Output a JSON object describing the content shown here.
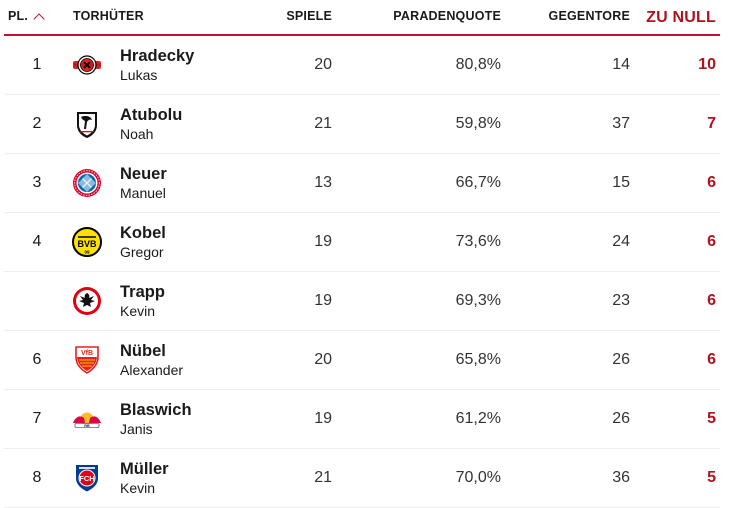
{
  "header": {
    "pl": "PL.",
    "torhueter": "TORHÜTER",
    "spiele": "SPIELE",
    "paradenquote": "PARADENQUOTE",
    "gegentore": "GEGENTORE",
    "zu_null": "ZU NULL",
    "sort_icon": "chevron-up-icon",
    "accent_color": "#c8102e"
  },
  "rows": [
    {
      "rank": "1",
      "last": "Hradecky",
      "first": "Lukas",
      "club_icon": "leverkusen-crest-icon",
      "spiele": "20",
      "paradenquote": "80,8%",
      "gegentore": "14",
      "zu_null": "10"
    },
    {
      "rank": "2",
      "last": "Atubolu",
      "first": "Noah",
      "club_icon": "freiburg-crest-icon",
      "spiele": "21",
      "paradenquote": "59,8%",
      "gegentore": "37",
      "zu_null": "7"
    },
    {
      "rank": "3",
      "last": "Neuer",
      "first": "Manuel",
      "club_icon": "bayern-crest-icon",
      "spiele": "13",
      "paradenquote": "66,7%",
      "gegentore": "15",
      "zu_null": "6"
    },
    {
      "rank": "4",
      "last": "Kobel",
      "first": "Gregor",
      "club_icon": "dortmund-crest-icon",
      "spiele": "19",
      "paradenquote": "73,6%",
      "gegentore": "24",
      "zu_null": "6"
    },
    {
      "rank": "",
      "last": "Trapp",
      "first": "Kevin",
      "club_icon": "frankfurt-crest-icon",
      "spiele": "19",
      "paradenquote": "69,3%",
      "gegentore": "23",
      "zu_null": "6"
    },
    {
      "rank": "6",
      "last": "Nübel",
      "first": "Alexander",
      "club_icon": "stuttgart-crest-icon",
      "spiele": "20",
      "paradenquote": "65,8%",
      "gegentore": "26",
      "zu_null": "6"
    },
    {
      "rank": "7",
      "last": "Blaswich",
      "first": "Janis",
      "club_icon": "leipzig-crest-icon",
      "spiele": "19",
      "paradenquote": "61,2%",
      "gegentore": "26",
      "zu_null": "5"
    },
    {
      "rank": "8",
      "last": "Müller",
      "first": "Kevin",
      "club_icon": "heidenheim-crest-icon",
      "spiele": "21",
      "paradenquote": "70,0%",
      "gegentore": "36",
      "zu_null": "5"
    }
  ]
}
